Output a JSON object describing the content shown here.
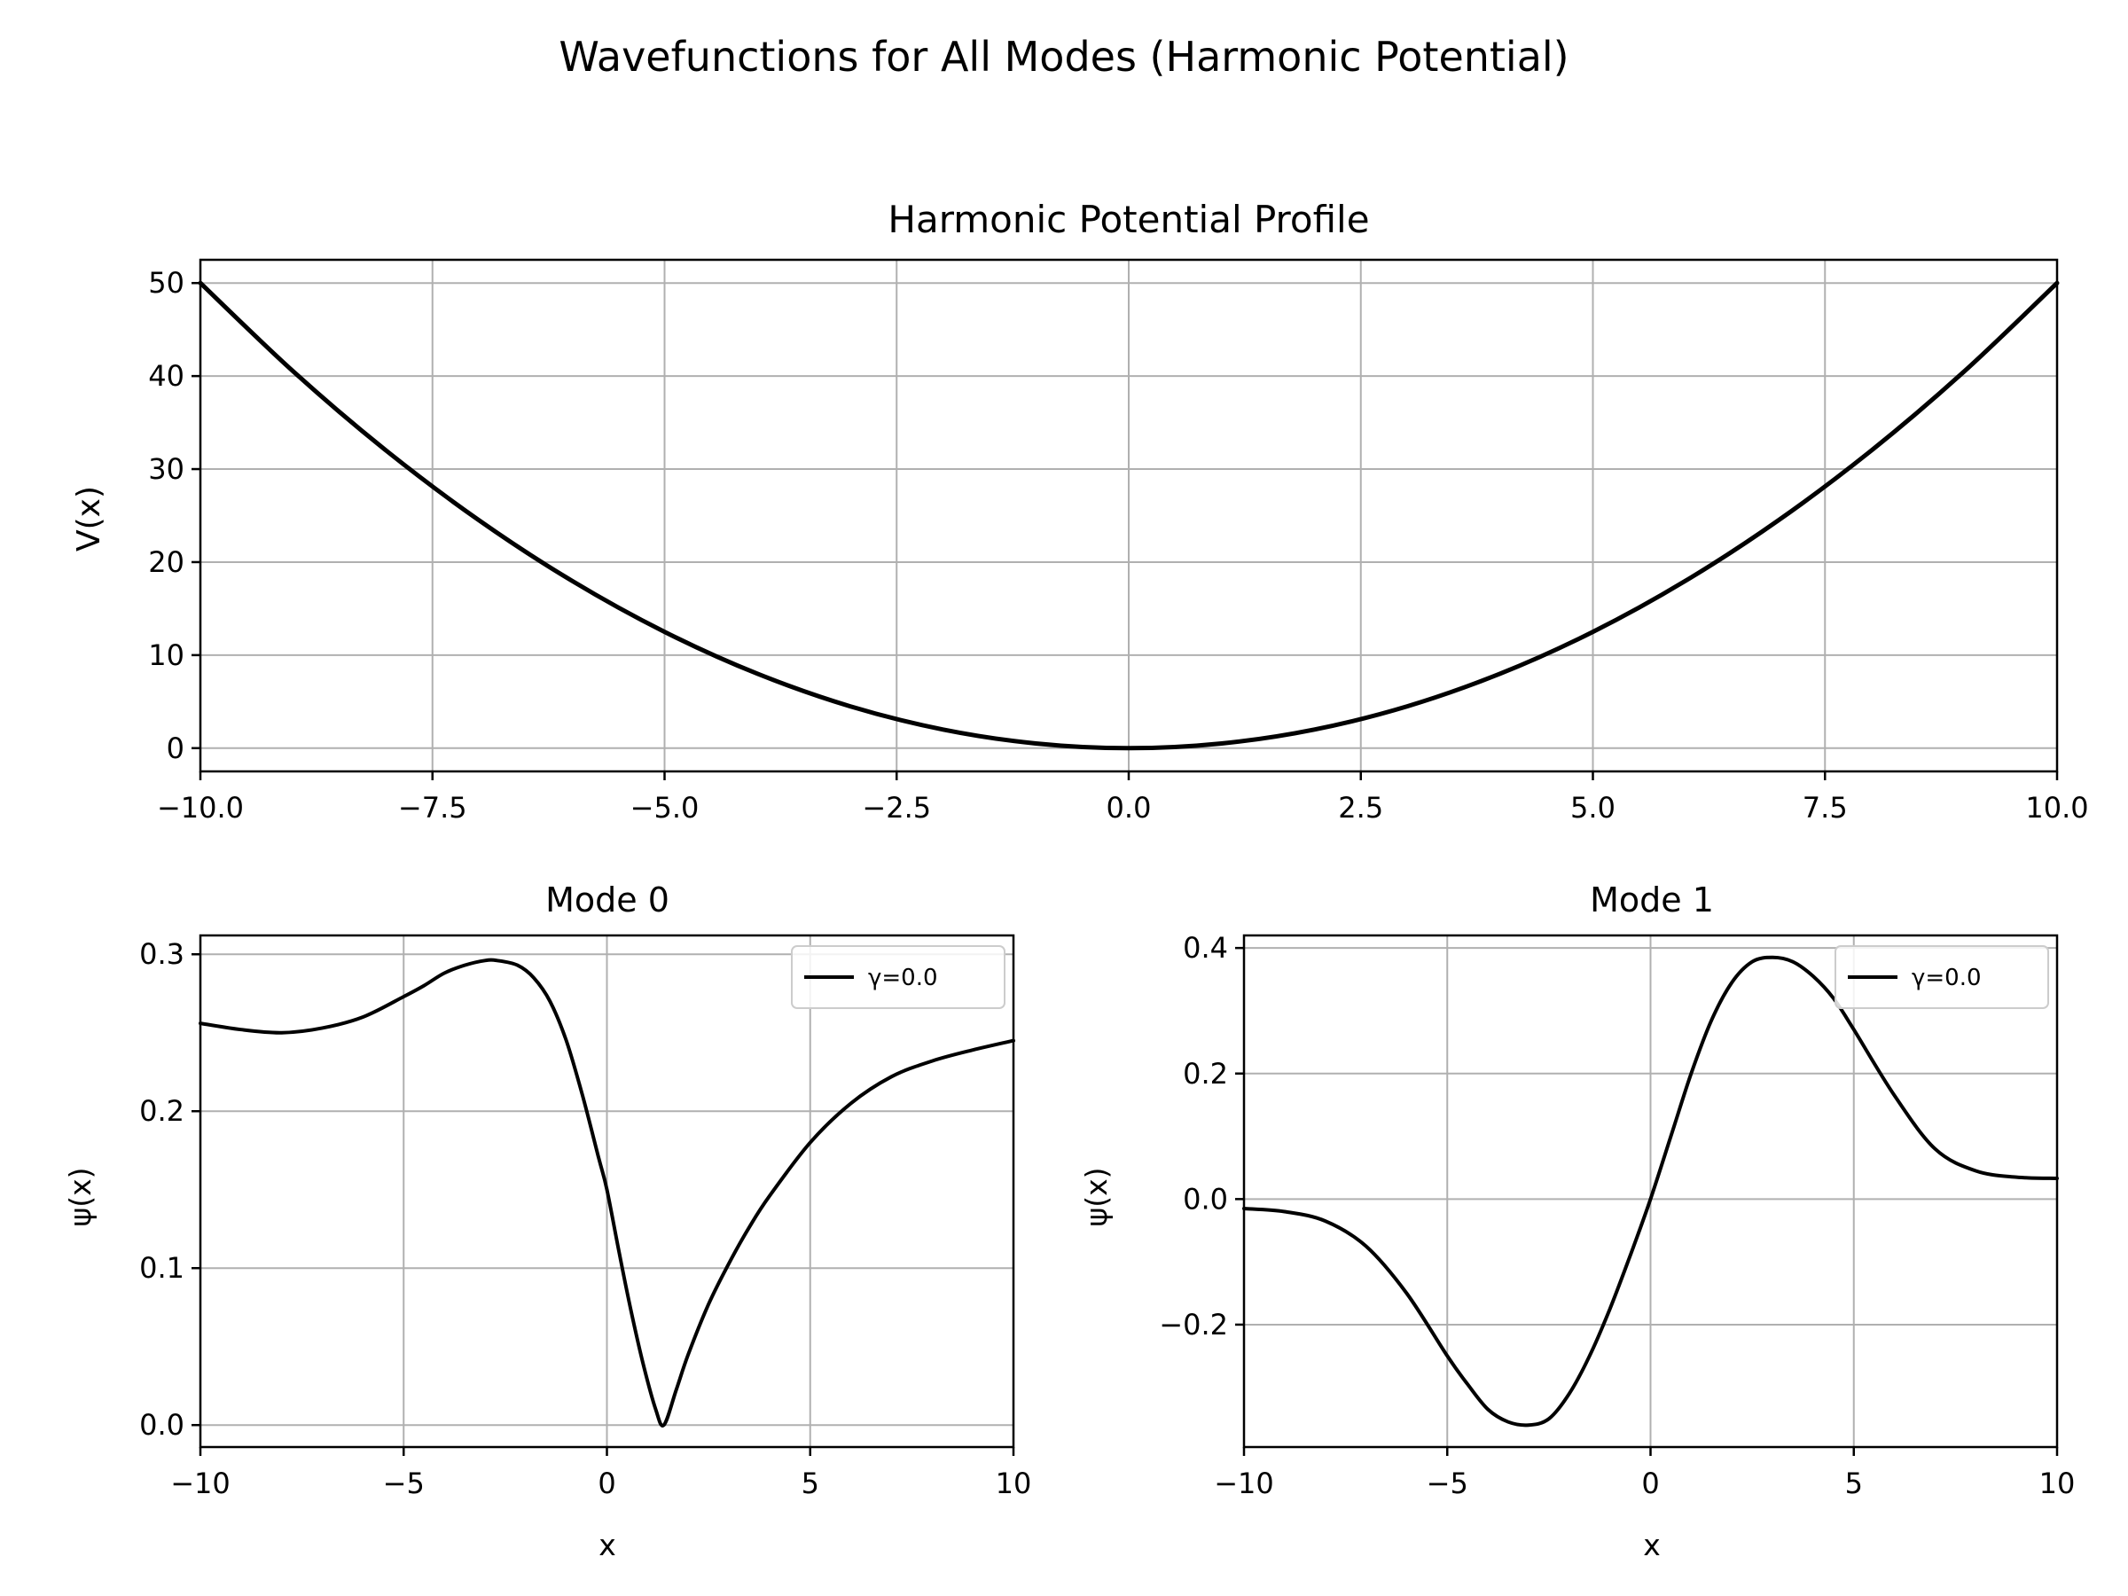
{
  "figure": {
    "suptitle": "Wavefunctions for All Modes (Harmonic Potential)",
    "line_color": "#000000",
    "grid_color": "#b0b0b0"
  },
  "chart_data": [
    {
      "type": "line",
      "title": "Harmonic Potential Profile",
      "xlabel": "",
      "ylabel": "V(x)",
      "xlim": [
        -10,
        10
      ],
      "ylim": [
        -2.5,
        52.5
      ],
      "xticks": [
        -10,
        -7.5,
        -5,
        -2.5,
        0,
        2.5,
        5,
        7.5,
        10
      ],
      "xtick_labels": [
        "−10.0",
        "−7.5",
        "−5.0",
        "−2.5",
        "0.0",
        "2.5",
        "5.0",
        "7.5",
        "10.0"
      ],
      "yticks": [
        0,
        10,
        20,
        30,
        40,
        50
      ],
      "ytick_labels": [
        "0",
        "10",
        "20",
        "30",
        "40",
        "50"
      ],
      "grid": true,
      "series": [
        {
          "name": "",
          "x": [
            -10,
            -9,
            -8,
            -7,
            -6,
            -5,
            -4,
            -3,
            -2,
            -1,
            0,
            1,
            2,
            3,
            4,
            5,
            6,
            7,
            8,
            9,
            10
          ],
          "y": [
            50,
            40.5,
            32,
            24.5,
            18,
            12.5,
            8,
            4.5,
            2,
            0.5,
            0,
            0.5,
            2,
            4.5,
            8,
            12.5,
            18,
            24.5,
            32,
            40.5,
            50
          ]
        }
      ]
    },
    {
      "type": "line",
      "title": "Mode 0",
      "xlabel": "x",
      "ylabel": "ψ(x)",
      "xlim": [
        -10,
        10
      ],
      "ylim": [
        -0.014,
        0.312
      ],
      "xticks": [
        -10,
        -5,
        0,
        5,
        10
      ],
      "xtick_labels": [
        "−10",
        "−5",
        "0",
        "5",
        "10"
      ],
      "yticks": [
        0,
        0.1,
        0.2,
        0.3
      ],
      "ytick_labels": [
        "0.0",
        "0.1",
        "0.2",
        "0.3"
      ],
      "grid": true,
      "legend": "top-right",
      "series": [
        {
          "name": "γ=0.0",
          "x": [
            -10,
            -9,
            -8,
            -7,
            -6,
            -5,
            -4.5,
            -4,
            -3.5,
            -3,
            -2.7,
            -2.2,
            -1.8,
            -1.4,
            -1,
            -0.6,
            -0.2,
            0,
            0.3,
            0.6,
            0.9,
            1.2,
            1.4,
            1.7,
            2,
            2.5,
            3,
            3.5,
            4,
            5,
            6,
            7,
            8,
            9,
            10
          ],
          "y": [
            0.256,
            0.252,
            0.25,
            0.253,
            0.26,
            0.273,
            0.28,
            0.288,
            0.293,
            0.296,
            0.296,
            0.293,
            0.285,
            0.27,
            0.245,
            0.21,
            0.17,
            0.15,
            0.11,
            0.072,
            0.038,
            0.01,
            0.0,
            0.022,
            0.045,
            0.077,
            0.103,
            0.126,
            0.146,
            0.18,
            0.205,
            0.222,
            0.232,
            0.239,
            0.245
          ]
        }
      ]
    },
    {
      "type": "line",
      "title": "Mode 1",
      "xlabel": "x",
      "ylabel": "ψ(x)",
      "xlim": [
        -10,
        10
      ],
      "ylim": [
        -0.395,
        0.42
      ],
      "xticks": [
        -10,
        -5,
        0,
        5,
        10
      ],
      "xtick_labels": [
        "−10",
        "−5",
        "0",
        "5",
        "10"
      ],
      "yticks": [
        -0.2,
        0,
        0.2,
        0.4
      ],
      "ytick_labels": [
        "−0.2",
        "0.0",
        "0.2",
        "0.4"
      ],
      "grid": true,
      "legend": "top-right",
      "series": [
        {
          "name": "γ=0.0",
          "x": [
            -10,
            -9,
            -8,
            -7,
            -6,
            -5,
            -4.5,
            -4,
            -3.5,
            -3,
            -2.5,
            -2,
            -1.5,
            -1,
            -0.5,
            0,
            0.5,
            1,
            1.5,
            2,
            2.5,
            3,
            3.5,
            4,
            4.5,
            5,
            6,
            7,
            8,
            9,
            10
          ],
          "y": [
            -0.015,
            -0.02,
            -0.035,
            -0.075,
            -0.15,
            -0.25,
            -0.295,
            -0.335,
            -0.355,
            -0.36,
            -0.35,
            -0.31,
            -0.25,
            -0.175,
            -0.09,
            0.0,
            0.1,
            0.2,
            0.285,
            0.345,
            0.378,
            0.385,
            0.378,
            0.355,
            0.32,
            0.27,
            0.165,
            0.08,
            0.045,
            0.035,
            0.033
          ]
        }
      ]
    }
  ]
}
